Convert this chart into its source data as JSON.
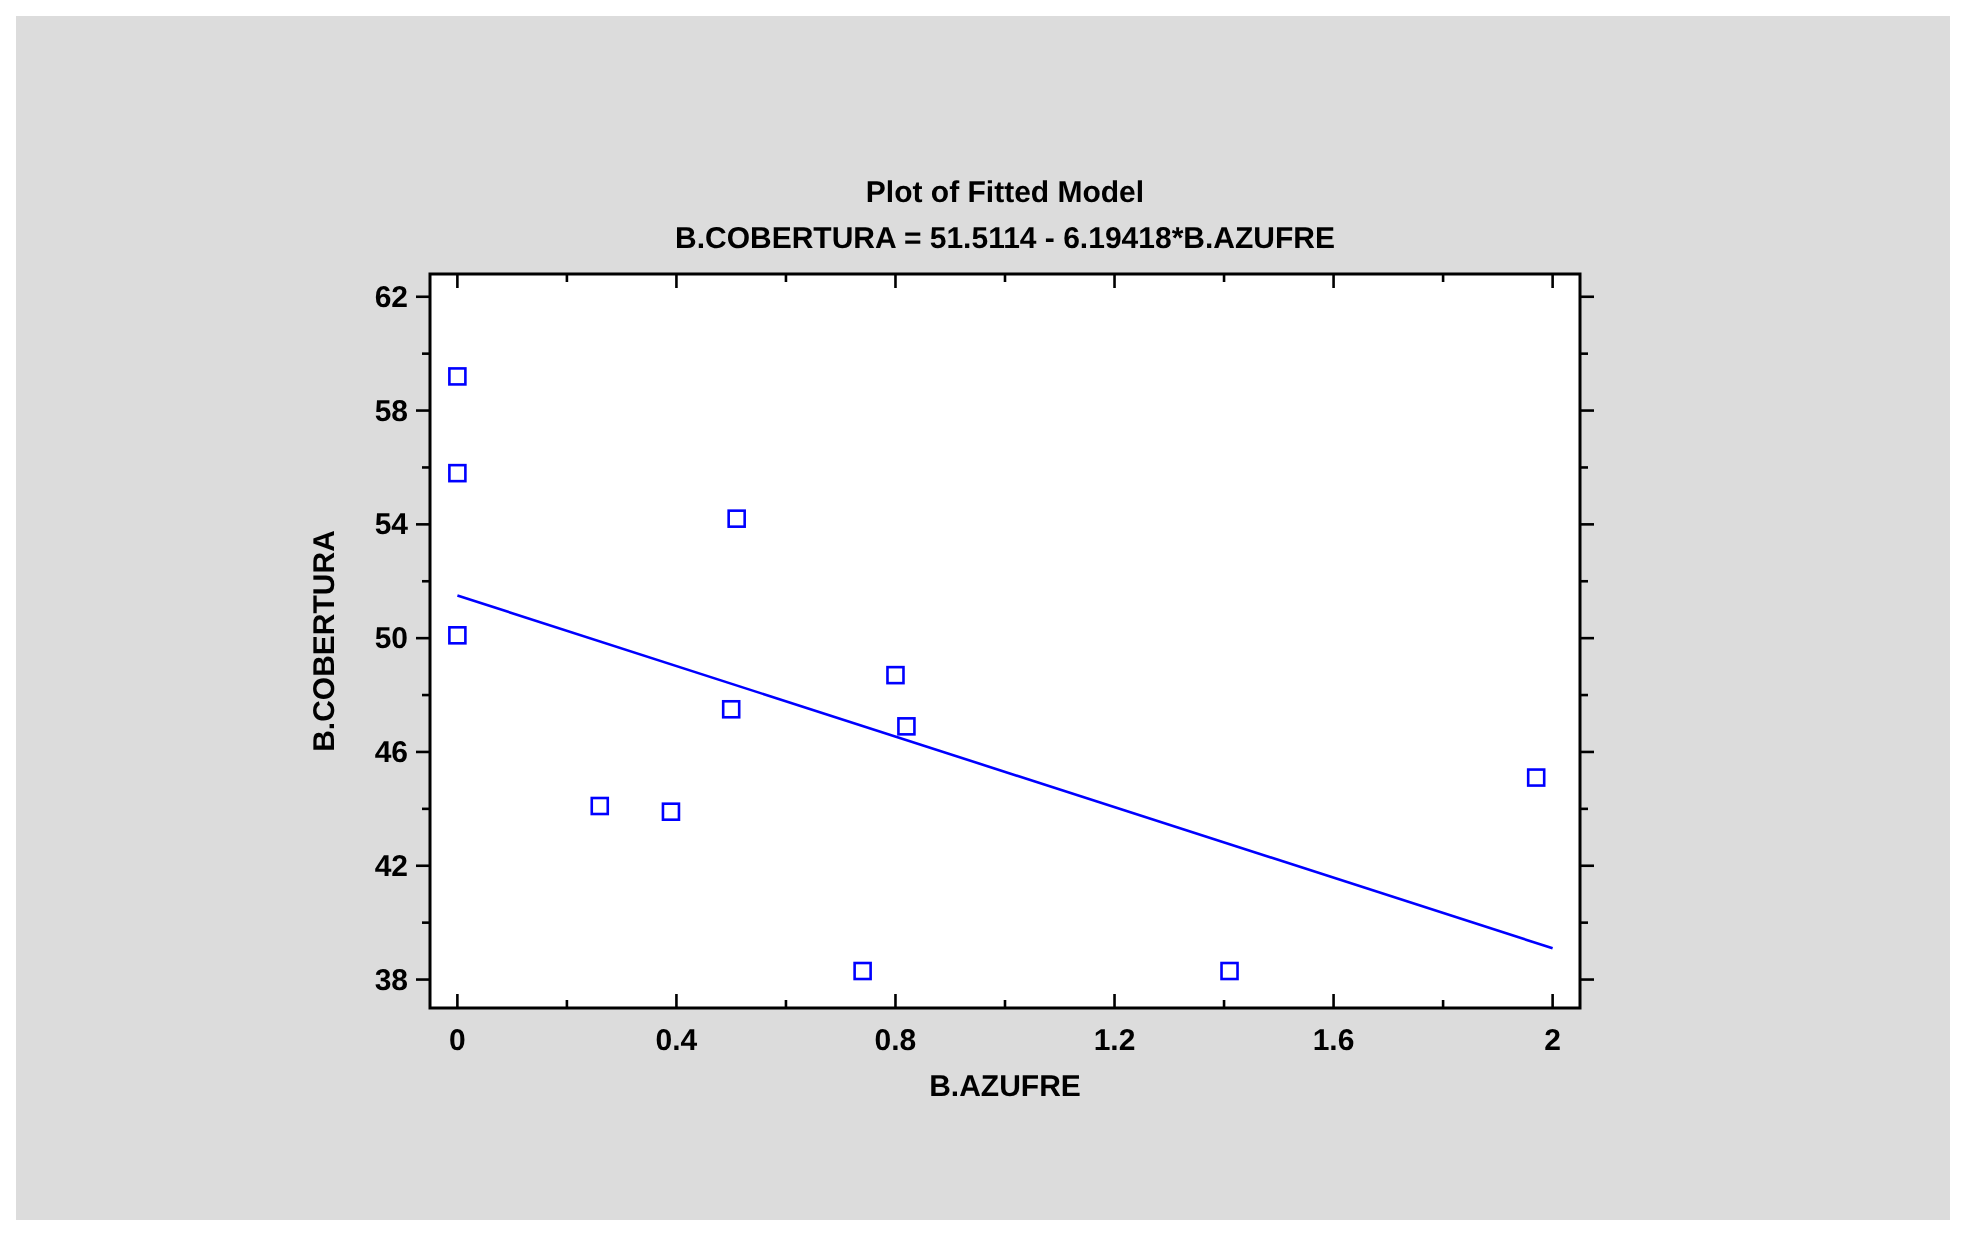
{
  "chart_data": {
    "type": "scatter",
    "title": "Plot of Fitted Model",
    "subtitle": "B.COBERTURA = 51.5114 - 6.19418*B.AZUFRE",
    "xlabel": "B.AZUFRE",
    "ylabel": "B.COBERTURA",
    "grid": false,
    "xlim": [
      -0.05,
      2.05
    ],
    "ylim": [
      37,
      62.8
    ],
    "xticks": [
      0,
      {
        "value": 0.2,
        "label": null
      },
      0.4,
      {
        "value": 0.6,
        "label": null
      },
      0.8,
      {
        "value": 1.0,
        "label": null
      },
      1.2,
      {
        "value": 1.4,
        "label": null
      },
      1.6,
      {
        "value": 1.8,
        "label": null
      },
      2
    ],
    "yticks": [
      38,
      {
        "value": 40,
        "label": null
      },
      42,
      {
        "value": 44,
        "label": null
      },
      46,
      {
        "value": 48,
        "label": null
      },
      50,
      {
        "value": 52,
        "label": null
      },
      54,
      {
        "value": 56,
        "label": null
      },
      58,
      {
        "value": 60,
        "label": null
      },
      62
    ],
    "series": [
      {
        "color": "#0000ff",
        "marker": "square",
        "x": [
          0,
          0,
          0,
          0.26,
          0.39,
          0.5,
          0.51,
          0.74,
          0.8,
          0.82,
          1.41,
          1.97
        ],
        "values": [
          59.2,
          55.8,
          50.1,
          44.1,
          43.9,
          47.5,
          54.2,
          38.3,
          48.7,
          46.9,
          38.3,
          45.1
        ]
      },
      {
        "type": "line",
        "color": "#0000ff",
        "line_style": "solid",
        "x": [
          0,
          2
        ],
        "values": [
          51.5,
          39.1
        ]
      }
    ]
  }
}
